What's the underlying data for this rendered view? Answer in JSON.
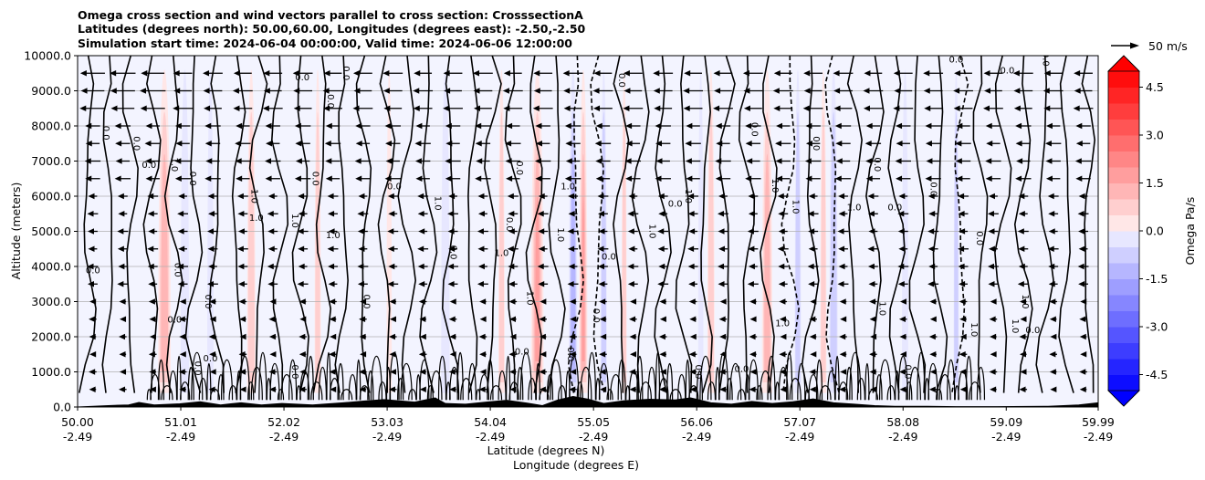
{
  "chart_data": {
    "type": "heatmap",
    "title": [
      "Omega cross section and wind vectors parallel to cross section: CrosssectionA",
      "Latitudes (degrees north): 50.00,60.00, Longitudes (degrees east): -2.50,-2.50",
      "Simulation start time: 2024-06-04 00:00:00, Valid time: 2024-06-06 12:00:00"
    ],
    "xlabel": "Latitude (degrees N)",
    "xlabel2": "Longitude (degrees E)",
    "ylabel": "Altitude (meters)",
    "x_ticks": [
      {
        "lat": "50.00",
        "lon": "-2.49",
        "value": 50.0
      },
      {
        "lat": "51.01",
        "lon": "-2.49",
        "value": 51.01
      },
      {
        "lat": "52.02",
        "lon": "-2.49",
        "value": 52.02
      },
      {
        "lat": "53.03",
        "lon": "-2.49",
        "value": 53.03
      },
      {
        "lat": "54.04",
        "lon": "-2.49",
        "value": 54.04
      },
      {
        "lat": "55.05",
        "lon": "-2.49",
        "value": 55.05
      },
      {
        "lat": "56.06",
        "lon": "-2.49",
        "value": 56.06
      },
      {
        "lat": "57.07",
        "lon": "-2.49",
        "value": 57.07
      },
      {
        "lat": "58.08",
        "lon": "-2.49",
        "value": 58.08
      },
      {
        "lat": "59.09",
        "lon": "-2.49",
        "value": 59.09
      },
      {
        "lat": "59.99",
        "lon": "-2.49",
        "value": 59.99
      }
    ],
    "xlim": [
      50.0,
      59.99
    ],
    "y_ticks": [
      "0.0",
      "1000.0",
      "2000.0",
      "3000.0",
      "4000.0",
      "5000.0",
      "6000.0",
      "7000.0",
      "8000.0",
      "9000.0",
      "10000.0"
    ],
    "ylim": [
      0,
      10000
    ],
    "grid": "horizontal",
    "colorbar": {
      "label": "Omega Pa/s",
      "ticks": [
        "4.5",
        "3.0",
        "1.5",
        "0.0",
        "-1.5",
        "-3.0",
        "-4.5"
      ],
      "range": [
        -5.0,
        5.0
      ],
      "extend": "both",
      "colormap": "bwr",
      "colors": {
        "negative": "#0000ff",
        "zero": "#ffffff",
        "positive": "#ff0000"
      }
    },
    "quiver_key": {
      "label": "50 m/s",
      "speed": 50
    },
    "wind_direction": "left (southward, toward lower latitude)",
    "contour_levels": [
      "-1.0",
      "0.0",
      "1.0"
    ],
    "contour_labels": [
      {
        "text": "0.0",
        "lat": 50.15,
        "alt": 3800
      },
      {
        "text": "0.0",
        "lat": 50.25,
        "alt": 7800
      },
      {
        "text": "0.0",
        "lat": 50.55,
        "alt": 7500
      },
      {
        "text": "0.0",
        "lat": 50.7,
        "alt": 6800
      },
      {
        "text": "1.0",
        "lat": 50.92,
        "alt": 6900
      },
      {
        "text": "0.0",
        "lat": 50.95,
        "alt": 3900
      },
      {
        "text": "0.0",
        "lat": 50.95,
        "alt": 2400
      },
      {
        "text": "0.0",
        "lat": 51.1,
        "alt": 6500
      },
      {
        "text": "0.0",
        "lat": 51.15,
        "alt": 1100
      },
      {
        "text": "0.0",
        "lat": 51.3,
        "alt": 1300
      },
      {
        "text": "0.0",
        "lat": 51.25,
        "alt": 3000
      },
      {
        "text": "1.0",
        "lat": 51.7,
        "alt": 6000
      },
      {
        "text": "1.0",
        "lat": 51.75,
        "alt": 5300
      },
      {
        "text": "1.0",
        "lat": 52.1,
        "alt": 5300
      },
      {
        "text": "0.0",
        "lat": 52.1,
        "alt": 1000
      },
      {
        "text": "0.0",
        "lat": 52.2,
        "alt": 9300
      },
      {
        "text": "0.0",
        "lat": 52.3,
        "alt": 6500
      },
      {
        "text": "0.0",
        "lat": 52.45,
        "alt": 8700
      },
      {
        "text": "1.0",
        "lat": 52.5,
        "alt": 4800
      },
      {
        "text": "0.0",
        "lat": 52.6,
        "alt": 9500
      },
      {
        "text": "0.0",
        "lat": 52.8,
        "alt": 3000
      },
      {
        "text": "0.0",
        "lat": 53.1,
        "alt": 6200
      },
      {
        "text": "1.0",
        "lat": 53.5,
        "alt": 5800
      },
      {
        "text": "0.0",
        "lat": 53.65,
        "alt": 4400
      },
      {
        "text": "1.0",
        "lat": 54.15,
        "alt": 4300
      },
      {
        "text": "0.0",
        "lat": 54.2,
        "alt": 5200
      },
      {
        "text": "0.0",
        "lat": 54.3,
        "alt": 6800
      },
      {
        "text": "0.0",
        "lat": 54.35,
        "alt": 1500
      },
      {
        "text": "1.0",
        "lat": 54.4,
        "alt": 3100
      },
      {
        "text": "1.0",
        "lat": 54.7,
        "alt": 4900
      },
      {
        "text": "1.0",
        "lat": 54.8,
        "alt": 6200
      },
      {
        "text": "0.0",
        "lat": 54.8,
        "alt": 1500
      },
      {
        "text": "0.0",
        "lat": 55.05,
        "alt": 2600
      },
      {
        "text": "0.0",
        "lat": 55.2,
        "alt": 4200
      },
      {
        "text": "0.0",
        "lat": 55.3,
        "alt": 9300
      },
      {
        "text": "1.0",
        "lat": 55.6,
        "alt": 5000
      },
      {
        "text": "0.0",
        "lat": 55.85,
        "alt": 5700
      },
      {
        "text": "1.0",
        "lat": 55.95,
        "alt": 6000
      },
      {
        "text": "0.0",
        "lat": 56.05,
        "alt": 1000
      },
      {
        "text": "0.0",
        "lat": 56.5,
        "alt": 1000
      },
      {
        "text": "0.0",
        "lat": 56.6,
        "alt": 7900
      },
      {
        "text": "1.0",
        "lat": 56.8,
        "alt": 6300
      },
      {
        "text": "1.0",
        "lat": 56.9,
        "alt": 2300
      },
      {
        "text": "1.0",
        "lat": 57.0,
        "alt": 5700
      },
      {
        "text": "0.0",
        "lat": 57.2,
        "alt": 7500
      },
      {
        "text": "1.0",
        "lat": 57.6,
        "alt": 5600
      },
      {
        "text": "1.0",
        "lat": 57.85,
        "alt": 2800
      },
      {
        "text": "0.0",
        "lat": 57.8,
        "alt": 6900
      },
      {
        "text": "0.0",
        "lat": 58.0,
        "alt": 5600
      },
      {
        "text": "0.0",
        "lat": 58.1,
        "alt": 1000
      },
      {
        "text": "0.0",
        "lat": 58.35,
        "alt": 6200
      },
      {
        "text": "0.0",
        "lat": 58.6,
        "alt": 9800
      },
      {
        "text": "1.0",
        "lat": 58.75,
        "alt": 2200
      },
      {
        "text": "0.0",
        "lat": 58.8,
        "alt": 4800
      },
      {
        "text": "0.0",
        "lat": 59.1,
        "alt": 9500
      },
      {
        "text": "1.0",
        "lat": 59.15,
        "alt": 2300
      },
      {
        "text": "1.0",
        "lat": 59.25,
        "alt": 3000
      },
      {
        "text": "0.0",
        "lat": 59.35,
        "alt": 2100
      },
      {
        "text": "0.0",
        "lat": 59.45,
        "alt": 9900
      }
    ],
    "omega_bands": [
      {
        "lat": 50.85,
        "width": 0.12,
        "value": 1.8
      },
      {
        "lat": 51.7,
        "width": 0.08,
        "value": 1.2
      },
      {
        "lat": 52.35,
        "width": 0.06,
        "value": 1.0
      },
      {
        "lat": 53.05,
        "width": 0.05,
        "value": 0.9
      },
      {
        "lat": 54.15,
        "width": 0.06,
        "value": 1.0
      },
      {
        "lat": 54.5,
        "width": 0.12,
        "value": 2.2
      },
      {
        "lat": 54.95,
        "width": 0.08,
        "value": 2.0
      },
      {
        "lat": 55.35,
        "width": 0.05,
        "value": 1.0
      },
      {
        "lat": 56.2,
        "width": 0.07,
        "value": 1.2
      },
      {
        "lat": 56.75,
        "width": 0.1,
        "value": 1.5
      },
      {
        "lat": 57.3,
        "width": 0.06,
        "value": 1.2
      },
      {
        "lat": 51.05,
        "width": 0.08,
        "value": -0.8
      },
      {
        "lat": 51.3,
        "width": 0.06,
        "value": -0.7
      },
      {
        "lat": 53.6,
        "width": 0.08,
        "value": -0.8
      },
      {
        "lat": 54.85,
        "width": 0.08,
        "value": -1.6
      },
      {
        "lat": 55.15,
        "width": 0.06,
        "value": -1.0
      },
      {
        "lat": 56.1,
        "width": 0.05,
        "value": -0.8
      },
      {
        "lat": 57.05,
        "width": 0.06,
        "value": -1.0
      },
      {
        "lat": 57.4,
        "width": 0.08,
        "value": -1.4
      },
      {
        "lat": 58.1,
        "width": 0.06,
        "value": -0.7
      },
      {
        "lat": 58.6,
        "width": 0.05,
        "value": -1.0
      }
    ],
    "terrain": [
      {
        "lat": 50.0,
        "alt": 0
      },
      {
        "lat": 50.3,
        "alt": 40
      },
      {
        "lat": 50.5,
        "alt": 60
      },
      {
        "lat": 50.6,
        "alt": 130
      },
      {
        "lat": 50.75,
        "alt": 60
      },
      {
        "lat": 51.0,
        "alt": 90
      },
      {
        "lat": 51.2,
        "alt": 150
      },
      {
        "lat": 51.4,
        "alt": 60
      },
      {
        "lat": 51.6,
        "alt": 120
      },
      {
        "lat": 51.8,
        "alt": 60
      },
      {
        "lat": 52.0,
        "alt": 100
      },
      {
        "lat": 52.3,
        "alt": 60
      },
      {
        "lat": 52.6,
        "alt": 120
      },
      {
        "lat": 52.8,
        "alt": 170
      },
      {
        "lat": 53.0,
        "alt": 210
      },
      {
        "lat": 53.3,
        "alt": 140
      },
      {
        "lat": 53.5,
        "alt": 260
      },
      {
        "lat": 53.6,
        "alt": 100
      },
      {
        "lat": 53.8,
        "alt": 80
      },
      {
        "lat": 54.0,
        "alt": 140
      },
      {
        "lat": 54.2,
        "alt": 190
      },
      {
        "lat": 54.4,
        "alt": 110
      },
      {
        "lat": 54.55,
        "alt": 40
      },
      {
        "lat": 54.7,
        "alt": 200
      },
      {
        "lat": 54.85,
        "alt": 300
      },
      {
        "lat": 55.0,
        "alt": 220
      },
      {
        "lat": 55.15,
        "alt": 100
      },
      {
        "lat": 55.35,
        "alt": 180
      },
      {
        "lat": 55.6,
        "alt": 220
      },
      {
        "lat": 55.85,
        "alt": 200
      },
      {
        "lat": 56.0,
        "alt": 260
      },
      {
        "lat": 56.2,
        "alt": 120
      },
      {
        "lat": 56.4,
        "alt": 80
      },
      {
        "lat": 56.6,
        "alt": 160
      },
      {
        "lat": 56.8,
        "alt": 100
      },
      {
        "lat": 57.0,
        "alt": 150
      },
      {
        "lat": 57.2,
        "alt": 230
      },
      {
        "lat": 57.4,
        "alt": 120
      },
      {
        "lat": 57.6,
        "alt": 80
      },
      {
        "lat": 57.8,
        "alt": 40
      },
      {
        "lat": 58.0,
        "alt": 20
      },
      {
        "lat": 58.3,
        "alt": 20
      },
      {
        "lat": 58.6,
        "alt": 10
      },
      {
        "lat": 59.0,
        "alt": 10
      },
      {
        "lat": 59.5,
        "alt": 20
      },
      {
        "lat": 59.8,
        "alt": 60
      },
      {
        "lat": 59.99,
        "alt": 120
      }
    ]
  }
}
